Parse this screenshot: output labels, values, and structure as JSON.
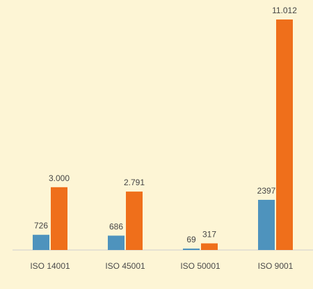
{
  "chart_data": {
    "type": "bar",
    "categories": [
      "ISO 14001",
      "ISO 45001",
      "ISO 50001",
      "ISO 9001"
    ],
    "series": [
      {
        "color": "#4e93bd",
        "values": [
          726,
          686,
          69,
          2397
        ],
        "labels": [
          "726",
          "686",
          "69",
          "2397"
        ]
      },
      {
        "color": "#ef6f1b",
        "values": [
          3000,
          2791,
          317,
          11012
        ],
        "labels": [
          "3.000",
          "2.791",
          "317",
          "11.012"
        ]
      }
    ],
    "ylim": [
      0,
      11012
    ],
    "grid": false,
    "legend": "none"
  }
}
